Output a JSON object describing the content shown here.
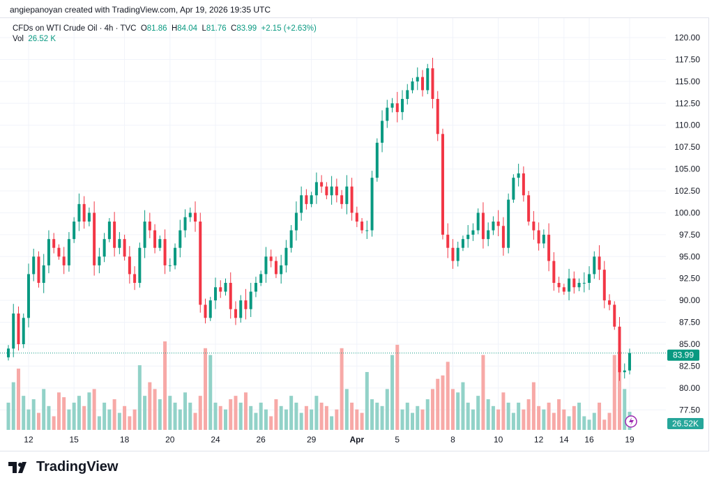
{
  "header": {
    "caption": "angiepanoyan created with TradingView.com, Apr 19, 2026 19:35 UTC"
  },
  "legend": {
    "symbol": "CFDs on WTI Crude Oil · 4h · TVC",
    "o_label": "O",
    "o": "81.86",
    "h_label": "H",
    "h": "84.04",
    "l_label": "L",
    "l": "81.76",
    "c_label": "C",
    "c": "83.99",
    "change": "+2.15 (+2.63%)",
    "vol_label": "Vol",
    "vol": "26.52 K"
  },
  "logo": {
    "text": "TradingView"
  },
  "colors": {
    "up": "#089981",
    "down": "#F23645",
    "up_vol": "#92d2c8",
    "down_vol": "#f7a9a7",
    "grid": "#f0f3fa"
  },
  "chart_data": {
    "type": "candlestick",
    "title": "CFDs on WTI Crude Oil · 4h · TVC",
    "ylim": [
      77.5,
      120
    ],
    "y_ticks": [
      "120.00",
      "117.50",
      "115.00",
      "112.50",
      "110.00",
      "107.50",
      "105.00",
      "102.50",
      "100.00",
      "97.50",
      "95.00",
      "92.50",
      "90.00",
      "87.50",
      "85.00",
      "82.50",
      "80.00",
      "77.50"
    ],
    "x_ticks": [
      {
        "label": "12",
        "i": 4
      },
      {
        "label": "15",
        "i": 13
      },
      {
        "label": "18",
        "i": 23
      },
      {
        "label": "20",
        "i": 32
      },
      {
        "label": "24",
        "i": 41
      },
      {
        "label": "26",
        "i": 50
      },
      {
        "label": "29",
        "i": 60
      },
      {
        "label": "Apr",
        "i": 69
      },
      {
        "label": "5",
        "i": 77
      },
      {
        "label": "8",
        "i": 88
      },
      {
        "label": "10",
        "i": 97
      },
      {
        "label": "12",
        "i": 105
      },
      {
        "label": "14",
        "i": 110
      },
      {
        "label": "16",
        "i": 115
      },
      {
        "label": "19",
        "i": 124
      }
    ],
    "last_price": "83.99",
    "last_volume": "26.52K",
    "closes": [
      84.5,
      88.5,
      85,
      88,
      93,
      95,
      92,
      94,
      97,
      96,
      95,
      94,
      97,
      99,
      101,
      99,
      100,
      94,
      95,
      97,
      99,
      96,
      97,
      95,
      93,
      92,
      96,
      99,
      98,
      96,
      97,
      94,
      94,
      96,
      98,
      99.5,
      100,
      99,
      89.5,
      88,
      90,
      91.5,
      91,
      92,
      89,
      88,
      90,
      89,
      91,
      92,
      93,
      95,
      94.5,
      93,
      94,
      96,
      98,
      100,
      102,
      101,
      102,
      103.5,
      103,
      102,
      103,
      102,
      101,
      103,
      100,
      99,
      98,
      98,
      104,
      108,
      110.5,
      112,
      112.5,
      111.5,
      113,
      114,
      115,
      115.5,
      114,
      116.5,
      113,
      109,
      97.5,
      96,
      94.5,
      96,
      97,
      97.5,
      98,
      100,
      97,
      98,
      99,
      98.5,
      96,
      101.5,
      104,
      104.5,
      102,
      99,
      98,
      96.5,
      97.5,
      94.5,
      92,
      91.5,
      91,
      92.5,
      91.5,
      92,
      92,
      93,
      95,
      93.5,
      90,
      89.5,
      87,
      81.8,
      82,
      83.99
    ],
    "first_open": 83.5,
    "volumes": [
      40,
      70,
      90,
      50,
      30,
      45,
      25,
      60,
      35,
      20,
      55,
      48,
      30,
      40,
      50,
      35,
      55,
      60,
      20,
      40,
      30,
      45,
      25,
      35,
      20,
      30,
      95,
      50,
      70,
      60,
      45,
      130,
      50,
      40,
      30,
      55,
      40,
      25,
      50,
      120,
      110,
      40,
      35,
      30,
      45,
      50,
      40,
      55,
      35,
      25,
      40,
      30,
      20,
      45,
      35,
      30,
      50,
      40,
      25,
      35,
      30,
      50,
      40,
      35,
      20,
      30,
      120,
      60,
      40,
      30,
      25,
      85,
      45,
      40,
      35,
      60,
      110,
      125,
      30,
      40,
      25,
      35,
      30,
      45,
      60,
      75,
      80,
      100,
      60,
      55,
      70,
      40,
      30,
      50,
      110,
      45,
      35,
      30,
      55,
      40,
      25,
      40,
      30,
      45,
      70,
      35,
      30,
      40,
      25,
      45,
      30,
      20,
      35,
      40,
      20,
      15,
      25,
      40,
      15,
      25,
      110,
      115,
      60,
      26.52
    ]
  }
}
